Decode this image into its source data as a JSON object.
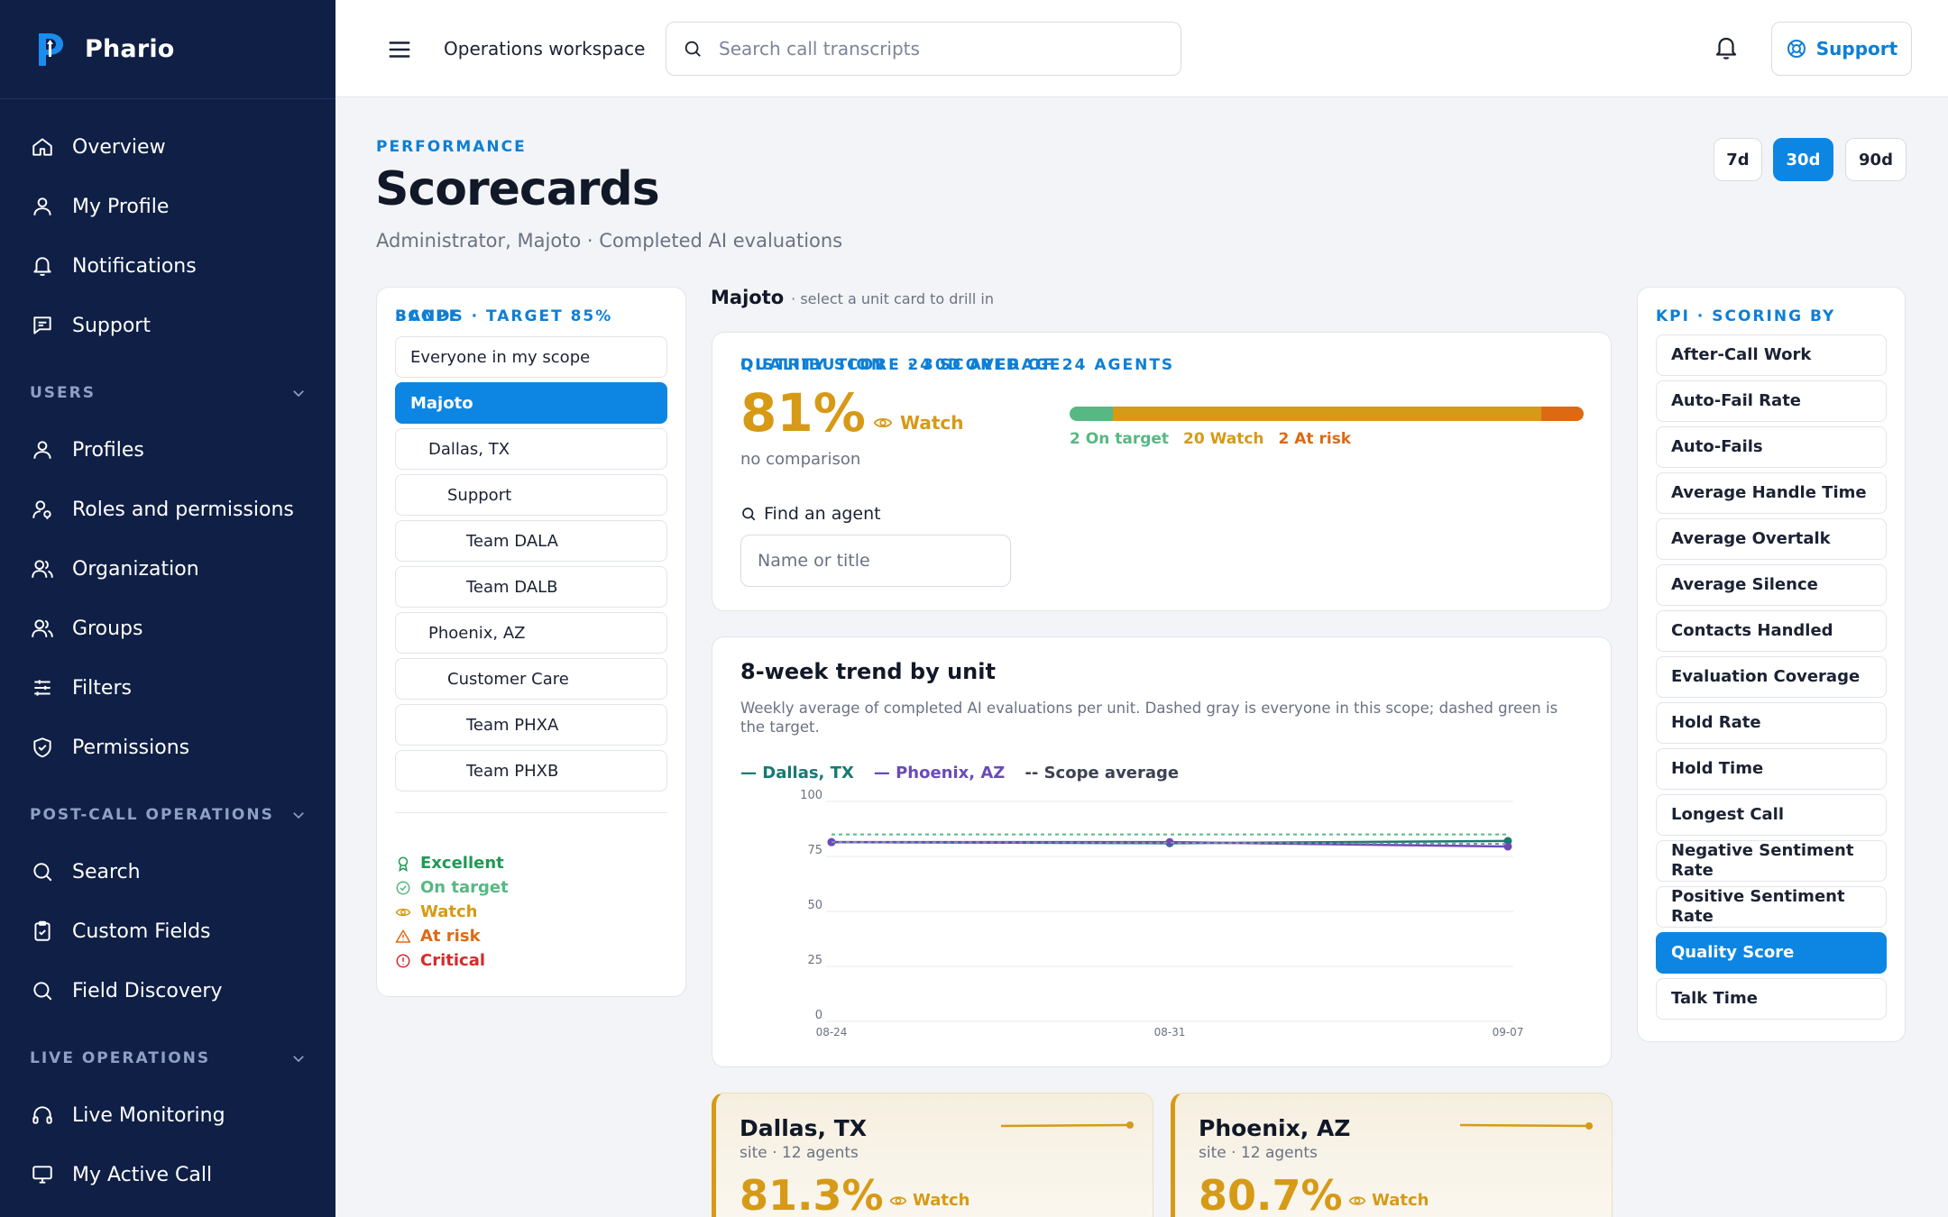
{
  "brand": {
    "name": "Phario"
  },
  "sidebar": {
    "items_top": [
      {
        "label": "Overview",
        "icon": "home-icon"
      },
      {
        "label": "My Profile",
        "icon": "user-icon"
      },
      {
        "label": "Notifications",
        "icon": "bell-icon"
      },
      {
        "label": "Support",
        "icon": "message-icon"
      }
    ],
    "sections": [
      {
        "label": "USERS",
        "items": [
          "Profiles",
          "Roles and permissions",
          "Organization",
          "Groups",
          "Filters",
          "Permissions"
        ]
      },
      {
        "label": "POST-CALL OPERATIONS",
        "items": [
          "Search",
          "Custom Fields",
          "Field Discovery"
        ]
      },
      {
        "label": "LIVE OPERATIONS",
        "items": [
          "Live Monitoring",
          "My Active Call"
        ]
      }
    ]
  },
  "topbar": {
    "workspace": "Operations workspace",
    "search_placeholder": "Search call transcripts",
    "support_label": "Support"
  },
  "page": {
    "eyebrow": "PERFORMANCE",
    "title": "Scorecards",
    "subtitle": "Administrator, Majoto · Completed AI evaluations",
    "ranges": [
      "7d",
      "30d",
      "90d"
    ],
    "active_range": "30d"
  },
  "scope": {
    "title": "SCOPE",
    "items": [
      "Everyone in my scope",
      "Majoto",
      "Dallas, TX",
      "Support",
      "Team DALA",
      "Team DALB",
      "Phoenix, AZ",
      "Customer Care",
      "Team PHXA",
      "Team PHXB"
    ],
    "active": "Majoto",
    "bands_title": "BANDS · TARGET 85%",
    "bands": [
      {
        "label": "Excellent",
        "color": "#1f9a55",
        "icon": "award-icon"
      },
      {
        "label": "On target",
        "color": "#57b883",
        "icon": "check-circle-icon"
      },
      {
        "label": "Watch",
        "color": "#d69a16",
        "icon": "eye-icon"
      },
      {
        "label": "At risk",
        "color": "#dd6a13",
        "icon": "warning-icon"
      },
      {
        "label": "Critical",
        "color": "#d62a2a",
        "icon": "alert-circle-icon"
      }
    ]
  },
  "context": {
    "name": "Majoto",
    "hint": "· select a unit card to drill in"
  },
  "quality": {
    "eyebrow": "QUALITY SCORE · 30D AVERAGE",
    "value": "81%",
    "band": "Watch",
    "comparison": "no comparison",
    "distribution_title": "DISTRIBUTION · 24 SCORED OF 24 AGENTS",
    "distribution": [
      {
        "label": "2 On target",
        "count": 2,
        "color": "#57b883"
      },
      {
        "label": "20 Watch",
        "count": 20,
        "color": "#d69a16"
      },
      {
        "label": "2 At risk",
        "count": 2,
        "color": "#dd6a13"
      }
    ],
    "find_label": "Find an agent",
    "find_placeholder": "Name or title"
  },
  "trend": {
    "title": "8-week trend by unit",
    "description": "Weekly average of completed AI evaluations per unit. Dashed gray is everyone in this scope; dashed green is the target.",
    "legend": [
      {
        "label": "— Dallas, TX",
        "color": "#177a72"
      },
      {
        "label": "— Phoenix, AZ",
        "color": "#6a4bb8"
      },
      {
        "label": "-- Scope average",
        "color": "#3b4252"
      }
    ]
  },
  "chart_data": {
    "type": "line",
    "x": [
      "08-24",
      "08-31",
      "09-07"
    ],
    "yticks": [
      0,
      25,
      50,
      75,
      100
    ],
    "ylim": [
      0,
      100
    ],
    "series": [
      {
        "name": "Dallas, TX",
        "values": [
          81.5,
          81,
          82
        ],
        "color": "#177a72"
      },
      {
        "name": "Phoenix, AZ",
        "values": [
          81.5,
          81.5,
          79.5
        ],
        "color": "#6a4bb8"
      },
      {
        "name": "Scope average",
        "values": [
          81.5,
          81.2,
          80.7
        ],
        "color": "#8a8f9c",
        "dashed": true
      },
      {
        "values": [
          85,
          85,
          85
        ],
        "color": "#57b883",
        "dashed": true
      }
    ]
  },
  "kpi": {
    "title": "KPI · SCORING BY",
    "items": [
      "After-Call Work",
      "Auto-Fail Rate",
      "Auto-Fails",
      "Average Handle Time",
      "Average Overtalk",
      "Average Silence",
      "Contacts Handled",
      "Evaluation Coverage",
      "Hold Rate",
      "Hold Time",
      "Longest Call",
      "Negative Sentiment Rate",
      "Positive Sentiment Rate",
      "Quality Score",
      "Talk Time"
    ],
    "active": "Quality Score"
  },
  "units": [
    {
      "name": "Dallas, TX",
      "sub": "site · 12 agents",
      "value": "81.3%",
      "band": "Watch"
    },
    {
      "name": "Phoenix, AZ",
      "sub": "site · 12 agents",
      "value": "80.7%",
      "band": "Watch"
    }
  ]
}
